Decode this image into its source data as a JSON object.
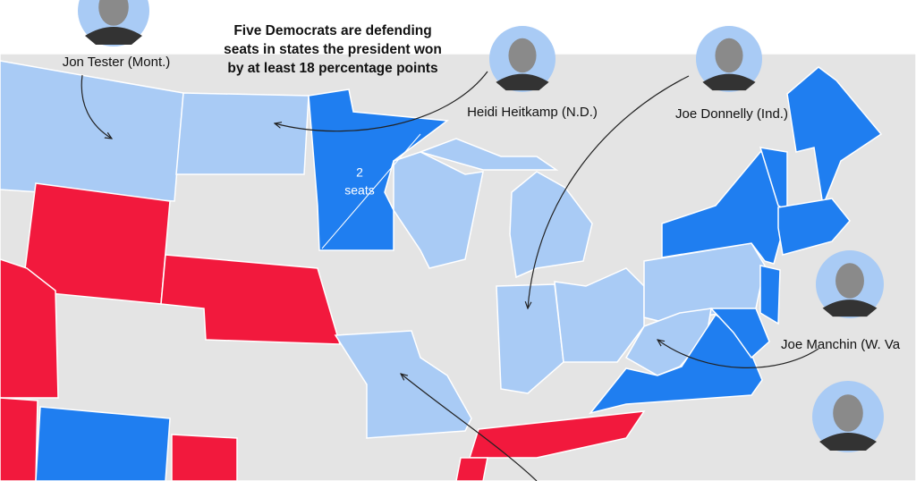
{
  "title_lines": [
    "Five Democrats are defending",
    "seats in states the president won",
    "by at least 18 percentage points"
  ],
  "map_labels": [
    "2",
    "seats"
  ],
  "people": [
    {
      "label": "Jon Tester (Mont.)"
    },
    {
      "label": "Heidi Heitkamp (N.D.)"
    },
    {
      "label": "Joe Donnelly (Ind.)"
    },
    {
      "label": "Joe Manchin (W. Va"
    }
  ]
}
